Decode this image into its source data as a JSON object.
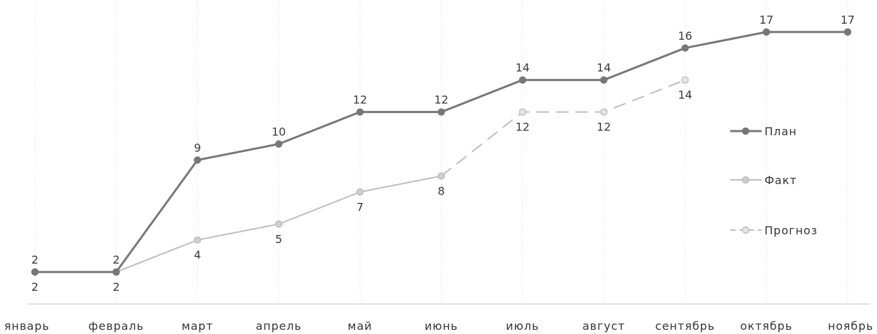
{
  "chart_data": {
    "type": "line",
    "categories": [
      "январь",
      "февраль",
      "март",
      "апрель",
      "май",
      "июнь",
      "июль",
      "август",
      "сентябрь",
      "октябрь",
      "ноябрь"
    ],
    "ylim": [
      0,
      19
    ],
    "grid": "vertical dotted",
    "legend": "right",
    "series": [
      {
        "name": "План",
        "values": [
          2,
          2,
          9,
          10,
          12,
          12,
          14,
          14,
          16,
          17,
          17
        ],
        "color": "#777777",
        "style": "solid-bold",
        "marker_fill": "#777777",
        "labels_position": "above"
      },
      {
        "name": "Факт",
        "values": [
          2,
          2,
          4,
          5,
          7,
          8,
          null,
          null,
          null,
          null,
          null
        ],
        "color": "#bdbdbd",
        "style": "solid",
        "marker_fill": "#cfcfcf",
        "labels_position": "below"
      },
      {
        "name": "Прогноз",
        "values": [
          null,
          null,
          null,
          null,
          null,
          8,
          12,
          12,
          14,
          null,
          null
        ],
        "color": "#bdbdbd",
        "style": "dashed",
        "marker_fill": "#e6e6e6",
        "labels_position": "below"
      }
    ]
  }
}
